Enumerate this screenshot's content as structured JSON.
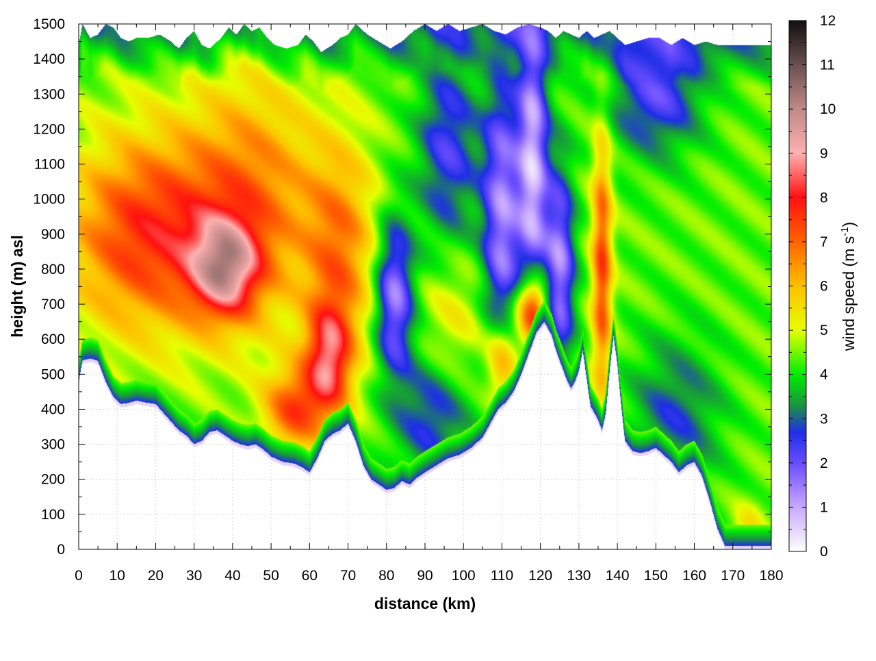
{
  "chart_data": {
    "type": "heatmap",
    "title": "",
    "xlabel": "distance (km)",
    "ylabel": "height (m) asl",
    "colorbar_label_main": "wind speed (m s",
    "colorbar_label_sup": "-1",
    "colorbar_label_end": ")",
    "xlim": [
      0,
      180
    ],
    "ylim": [
      0,
      1500
    ],
    "zlim": [
      0,
      12
    ],
    "x_ticks": [
      "0",
      "10",
      "20",
      "30",
      "40",
      "50",
      "60",
      "70",
      "80",
      "90",
      "100",
      "110",
      "120",
      "130",
      "140",
      "150",
      "160",
      "170",
      "180"
    ],
    "y_ticks": [
      "0",
      "100",
      "200",
      "300",
      "400",
      "500",
      "600",
      "700",
      "800",
      "900",
      "1000",
      "1100",
      "1200",
      "1300",
      "1400",
      "1500"
    ],
    "z_ticks": [
      "0",
      "1",
      "2",
      "3",
      "4",
      "5",
      "6",
      "7",
      "8",
      "9",
      "10",
      "11",
      "12"
    ],
    "grid": true,
    "colormap": [
      {
        "v": 0,
        "color": "#ffffff"
      },
      {
        "v": 1,
        "color": "#c8a8ff"
      },
      {
        "v": 2,
        "color": "#6a4cff"
      },
      {
        "v": 2.7,
        "color": "#1e2ee6"
      },
      {
        "v": 3.3,
        "color": "#1a9440"
      },
      {
        "v": 4,
        "color": "#00ee00"
      },
      {
        "v": 5,
        "color": "#e6ff00"
      },
      {
        "v": 6,
        "color": "#ffc000"
      },
      {
        "v": 7,
        "color": "#ff6400"
      },
      {
        "v": 8,
        "color": "#ff1010"
      },
      {
        "v": 9,
        "color": "#ffb0b0"
      },
      {
        "v": 10,
        "color": "#c08a88"
      },
      {
        "v": 11,
        "color": "#6a5050"
      },
      {
        "v": 12,
        "color": "#101010"
      }
    ],
    "terrain_height": [
      [
        0,
        470
      ],
      [
        1,
        530
      ],
      [
        3,
        535
      ],
      [
        5,
        528
      ],
      [
        7,
        470
      ],
      [
        9,
        425
      ],
      [
        11,
        405
      ],
      [
        13,
        408
      ],
      [
        15,
        415
      ],
      [
        17,
        410
      ],
      [
        20,
        405
      ],
      [
        22,
        380
      ],
      [
        24,
        355
      ],
      [
        26,
        330
      ],
      [
        28,
        315
      ],
      [
        30,
        290
      ],
      [
        32,
        300
      ],
      [
        34,
        325
      ],
      [
        36,
        330
      ],
      [
        38,
        315
      ],
      [
        40,
        300
      ],
      [
        42,
        290
      ],
      [
        44,
        285
      ],
      [
        46,
        290
      ],
      [
        48,
        275
      ],
      [
        50,
        255
      ],
      [
        53,
        240
      ],
      [
        56,
        235
      ],
      [
        58,
        225
      ],
      [
        60,
        210
      ],
      [
        62,
        250
      ],
      [
        64,
        300
      ],
      [
        66,
        320
      ],
      [
        68,
        330
      ],
      [
        70,
        350
      ],
      [
        72,
        300
      ],
      [
        74,
        230
      ],
      [
        76,
        190
      ],
      [
        78,
        175
      ],
      [
        80,
        160
      ],
      [
        82,
        165
      ],
      [
        84,
        185
      ],
      [
        86,
        175
      ],
      [
        88,
        195
      ],
      [
        90,
        210
      ],
      [
        93,
        230
      ],
      [
        96,
        250
      ],
      [
        99,
        260
      ],
      [
        102,
        280
      ],
      [
        105,
        310
      ],
      [
        107,
        350
      ],
      [
        109,
        390
      ],
      [
        111,
        410
      ],
      [
        113,
        440
      ],
      [
        115,
        490
      ],
      [
        117,
        550
      ],
      [
        119,
        610
      ],
      [
        121,
        640
      ],
      [
        123,
        600
      ],
      [
        124,
        560
      ],
      [
        125,
        530
      ],
      [
        126,
        500
      ],
      [
        127,
        470
      ],
      [
        128,
        450
      ],
      [
        129,
        470
      ],
      [
        130,
        500
      ],
      [
        131,
        560
      ],
      [
        132,
        480
      ],
      [
        133,
        400
      ],
      [
        134,
        380
      ],
      [
        135,
        360
      ],
      [
        136,
        330
      ],
      [
        137,
        380
      ],
      [
        138,
        500
      ],
      [
        139,
        600
      ],
      [
        140,
        520
      ],
      [
        141,
        400
      ],
      [
        142,
        300
      ],
      [
        144,
        270
      ],
      [
        146,
        265
      ],
      [
        148,
        270
      ],
      [
        150,
        280
      ],
      [
        152,
        260
      ],
      [
        154,
        240
      ],
      [
        156,
        210
      ],
      [
        158,
        230
      ],
      [
        160,
        240
      ],
      [
        162,
        200
      ],
      [
        164,
        130
      ],
      [
        166,
        50
      ],
      [
        168,
        0
      ],
      [
        180,
        0
      ]
    ],
    "top_boundary": [
      [
        0,
        1440
      ],
      [
        1,
        1500
      ],
      [
        3,
        1460
      ],
      [
        5,
        1470
      ],
      [
        7,
        1500
      ],
      [
        9,
        1490
      ],
      [
        11,
        1460
      ],
      [
        13,
        1450
      ],
      [
        15,
        1460
      ],
      [
        18,
        1460
      ],
      [
        21,
        1470
      ],
      [
        24,
        1450
      ],
      [
        26,
        1430
      ],
      [
        28,
        1460
      ],
      [
        30,
        1480
      ],
      [
        32,
        1440
      ],
      [
        34,
        1430
      ],
      [
        37,
        1460
      ],
      [
        39,
        1490
      ],
      [
        41,
        1470
      ],
      [
        43,
        1500
      ],
      [
        45,
        1480
      ],
      [
        47,
        1490
      ],
      [
        49,
        1460
      ],
      [
        51,
        1440
      ],
      [
        54,
        1430
      ],
      [
        57,
        1440
      ],
      [
        59,
        1470
      ],
      [
        61,
        1450
      ],
      [
        63,
        1420
      ],
      [
        66,
        1440
      ],
      [
        68,
        1460
      ],
      [
        70,
        1470
      ],
      [
        72,
        1500
      ],
      [
        75,
        1470
      ],
      [
        78,
        1450
      ],
      [
        81,
        1430
      ],
      [
        84,
        1450
      ],
      [
        87,
        1480
      ],
      [
        90,
        1500
      ],
      [
        93,
        1480
      ],
      [
        96,
        1500
      ],
      [
        99,
        1480
      ],
      [
        102,
        1490
      ],
      [
        105,
        1500
      ],
      [
        108,
        1480
      ],
      [
        111,
        1470
      ],
      [
        114,
        1490
      ],
      [
        117,
        1500
      ],
      [
        120,
        1490
      ],
      [
        122,
        1480
      ],
      [
        124,
        1460
      ],
      [
        126,
        1480
      ],
      [
        128,
        1470
      ],
      [
        130,
        1460
      ],
      [
        132,
        1480
      ],
      [
        134,
        1460
      ],
      [
        136,
        1470
      ],
      [
        138,
        1480
      ],
      [
        140,
        1460
      ],
      [
        142,
        1440
      ],
      [
        145,
        1450
      ],
      [
        148,
        1460
      ],
      [
        151,
        1460
      ],
      [
        154,
        1440
      ],
      [
        157,
        1460
      ],
      [
        160,
        1440
      ],
      [
        163,
        1450
      ],
      [
        166,
        1440
      ],
      [
        168,
        1440
      ],
      [
        180,
        1440
      ]
    ],
    "blobs": [
      {
        "cx": 17,
        "cy": 900,
        "rx": 20,
        "ry": 280,
        "amp": 3.2
      },
      {
        "cx": 38,
        "cy": 800,
        "rx": 9,
        "ry": 140,
        "amp": 3.8
      },
      {
        "cx": 45,
        "cy": 1000,
        "rx": 18,
        "ry": 350,
        "amp": 2.3
      },
      {
        "cx": 65,
        "cy": 540,
        "rx": 6,
        "ry": 160,
        "amp": 3.6
      },
      {
        "cx": 56,
        "cy": 400,
        "rx": 8,
        "ry": 120,
        "amp": 2.8
      },
      {
        "cx": 68,
        "cy": 850,
        "rx": 9,
        "ry": 300,
        "amp": 2.2
      },
      {
        "cx": 82,
        "cy": 720,
        "rx": 5,
        "ry": 220,
        "amp": -3.0
      },
      {
        "cx": 96,
        "cy": 1150,
        "rx": 8,
        "ry": 300,
        "amp": -2.0
      },
      {
        "cx": 97,
        "cy": 650,
        "rx": 8,
        "ry": 200,
        "amp": 1.0
      },
      {
        "cx": 92,
        "cy": 380,
        "rx": 10,
        "ry": 180,
        "amp": -1.8
      },
      {
        "cx": 110,
        "cy": 950,
        "rx": 5,
        "ry": 420,
        "amp": -3.0
      },
      {
        "cx": 118,
        "cy": 680,
        "rx": 4,
        "ry": 110,
        "amp": 4.5
      },
      {
        "cx": 118,
        "cy": 1100,
        "rx": 4,
        "ry": 450,
        "amp": -3.5
      },
      {
        "cx": 110,
        "cy": 530,
        "rx": 4,
        "ry": 130,
        "amp": 2.5
      },
      {
        "cx": 125,
        "cy": 800,
        "rx": 4,
        "ry": 300,
        "amp": -3.0
      },
      {
        "cx": 136,
        "cy": 800,
        "rx": 2.5,
        "ry": 380,
        "amp": 3.0
      },
      {
        "cx": 150,
        "cy": 1300,
        "rx": 12,
        "ry": 170,
        "amp": -2.2
      },
      {
        "cx": 155,
        "cy": 380,
        "rx": 12,
        "ry": 220,
        "amp": -1.5
      },
      {
        "cx": 174,
        "cy": 60,
        "rx": 4,
        "ry": 70,
        "amp": 1.0
      }
    ]
  }
}
